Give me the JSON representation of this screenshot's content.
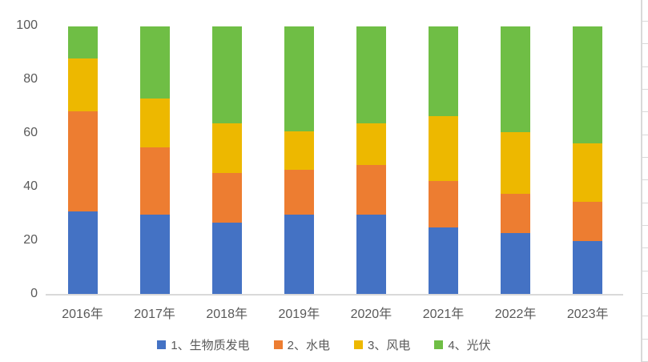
{
  "chart_data": {
    "type": "bar",
    "stacked": true,
    "orientation": "vertical",
    "title": "",
    "xlabel": "",
    "ylabel": "",
    "ylim": [
      0,
      100
    ],
    "yticks": [
      0,
      20,
      40,
      60,
      80,
      100
    ],
    "grid": false,
    "legend_position": "bottom",
    "categories": [
      "2016年",
      "2017年",
      "2018年",
      "2019年",
      "2020年",
      "2021年",
      "2022年",
      "2023年"
    ],
    "series": [
      {
        "name": "1、生物质发电",
        "color": "#4472c4",
        "values": [
          31,
          30,
          27,
          30,
          30,
          25,
          23,
          20
        ]
      },
      {
        "name": "2、水电",
        "color": "#ed7d31",
        "values": [
          37.5,
          25,
          18.5,
          16.5,
          18.5,
          17.5,
          14.5,
          14.5
        ]
      },
      {
        "name": "3、风电",
        "color": "#edb800",
        "values": [
          19.5,
          18,
          18.5,
          14.5,
          15.5,
          24,
          23,
          22
        ]
      },
      {
        "name": "4、光伏",
        "color": "#6fbe45",
        "values": [
          12,
          27,
          36,
          39,
          36,
          33.5,
          39.5,
          43.5
        ]
      }
    ]
  },
  "axis_style": {
    "tick_text_color": "#595959",
    "axis_line_color": "#d9d9d9"
  },
  "worksheet_edge": {
    "note": "spreadsheet cell gridlines visible at right edge of screenshot",
    "line_color": "#d9d9d9",
    "row_count": 16
  }
}
